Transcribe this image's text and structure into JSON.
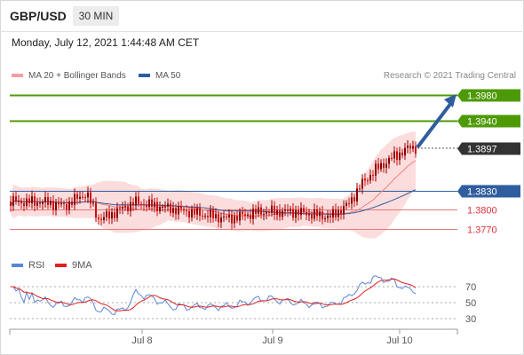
{
  "header": {
    "symbol": "GBP/USD",
    "timeframe": "30 MIN",
    "datetime": "Monday, July 12, 2021 1:44:48 AM CET"
  },
  "legend": {
    "ma20_label": "MA 20 + Bollinger Bands",
    "ma50_label": "MA 50",
    "credit": "Research © 2021 Trading Central"
  },
  "colors": {
    "resistance": "#4e9a06",
    "support": "#e0303a",
    "ma50": "#2f5d9e",
    "ma20": "#f08080",
    "bands": "#fbd4d4",
    "current": "#333333",
    "candle": "#b00000",
    "arrow": "#2f5d9e",
    "rsi": "#5b86d9",
    "rsi_ma": "#e02020"
  },
  "levels": [
    {
      "value": 1.398,
      "label": "1.3980",
      "kind": "resistance"
    },
    {
      "value": 1.394,
      "label": "1.3940",
      "kind": "resistance"
    },
    {
      "value": 1.3897,
      "label": "1.3897",
      "kind": "current"
    },
    {
      "value": 1.383,
      "label": "1.3830",
      "kind": "pivot"
    },
    {
      "value": 1.38,
      "label": "1.3800",
      "kind": "support"
    },
    {
      "value": 1.377,
      "label": "1.3770",
      "kind": "support"
    }
  ],
  "rsi_panel": {
    "rsi_label": "RSI",
    "ma_label": "9MA",
    "ticks": [
      "70",
      "50",
      "30"
    ]
  },
  "x_axis": {
    "ticks": [
      "Jul 8",
      "Jul 9",
      "Jul 10"
    ]
  }
}
